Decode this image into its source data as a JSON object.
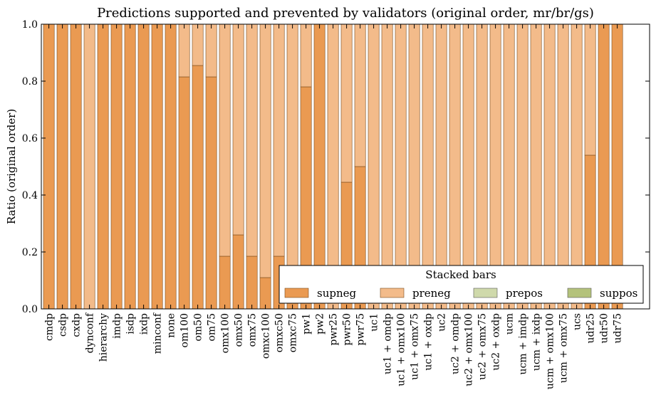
{
  "chart_data": {
    "type": "bar",
    "stacked": true,
    "title": "Predictions supported and prevented by validators (original order, mr/br/gs)",
    "xlabel": "",
    "ylabel": "Ratio (original order)",
    "ylim": [
      0,
      1
    ],
    "yticks": [
      "0.0",
      "0.2",
      "0.4",
      "0.6",
      "0.8",
      "1.0"
    ],
    "grid": false,
    "legend": {
      "title": "Stacked bars",
      "placement": "lower-right",
      "ncol": 4
    },
    "categories": [
      "cmdp",
      "csdp",
      "cxdp",
      "dynconf",
      "hierarchy",
      "imdp",
      "isdp",
      "ixdp",
      "minconf",
      "none",
      "om100",
      "om50",
      "om75",
      "omx100",
      "omx50",
      "omx75",
      "omxc100",
      "omxc50",
      "omxc75",
      "pw1",
      "pw2",
      "pwr25",
      "pwr50",
      "pwr75",
      "uc1",
      "uc1 + omdp",
      "uc1 + omx100",
      "uc1 + omx75",
      "uc1 + oxdp",
      "uc2",
      "uc2 + omdp",
      "uc2 + omx100",
      "uc2 + omx75",
      "uc2 + oxdp",
      "ucm",
      "ucm + imdp",
      "ucm + ixdp",
      "ucm + omx100",
      "ucm + omx75",
      "ucs",
      "udr25",
      "udr50",
      "udr75"
    ],
    "series": [
      {
        "name": "supneg",
        "color": "#ea9a52",
        "values": [
          1,
          1,
          1,
          0,
          1,
          1,
          1,
          1,
          1,
          1,
          0.815,
          0.855,
          0.815,
          0.185,
          0.26,
          0.185,
          0.11,
          0.185,
          0.11,
          0.78,
          1,
          0,
          0.445,
          0.5,
          0,
          0,
          0,
          0,
          0,
          0,
          0,
          0,
          0,
          0,
          0,
          0,
          0,
          0,
          0,
          0,
          0.54,
          1,
          1
        ]
      },
      {
        "name": "preneg",
        "color": "#f3bb8a",
        "values": [
          0,
          0,
          0,
          1,
          0,
          0,
          0,
          0,
          0,
          0,
          0.185,
          0.145,
          0.185,
          0.815,
          0.74,
          0.815,
          0.89,
          0.815,
          0.89,
          0.22,
          0,
          1,
          0.555,
          0.5,
          1,
          1,
          1,
          1,
          1,
          1,
          1,
          1,
          1,
          1,
          1,
          1,
          1,
          1,
          1,
          1,
          0.46,
          0,
          0
        ]
      },
      {
        "name": "prepos",
        "color": "#cfd9ab",
        "values": [
          0,
          0,
          0,
          0,
          0,
          0,
          0,
          0,
          0,
          0,
          0,
          0,
          0,
          0,
          0,
          0,
          0,
          0,
          0,
          0,
          0,
          0,
          0,
          0,
          0,
          0,
          0,
          0,
          0,
          0,
          0,
          0,
          0,
          0,
          0,
          0,
          0,
          0,
          0,
          0,
          0,
          0,
          0
        ]
      },
      {
        "name": "suppos",
        "color": "#b4c27b",
        "values": [
          0,
          0,
          0,
          0,
          0,
          0,
          0,
          0,
          0,
          0,
          0,
          0,
          0,
          0,
          0,
          0,
          0,
          0,
          0,
          0,
          0,
          0,
          0,
          0,
          0,
          0,
          0,
          0,
          0,
          0,
          0,
          0,
          0,
          0,
          0,
          0,
          0,
          0,
          0,
          0,
          0,
          0,
          0
        ]
      }
    ]
  }
}
